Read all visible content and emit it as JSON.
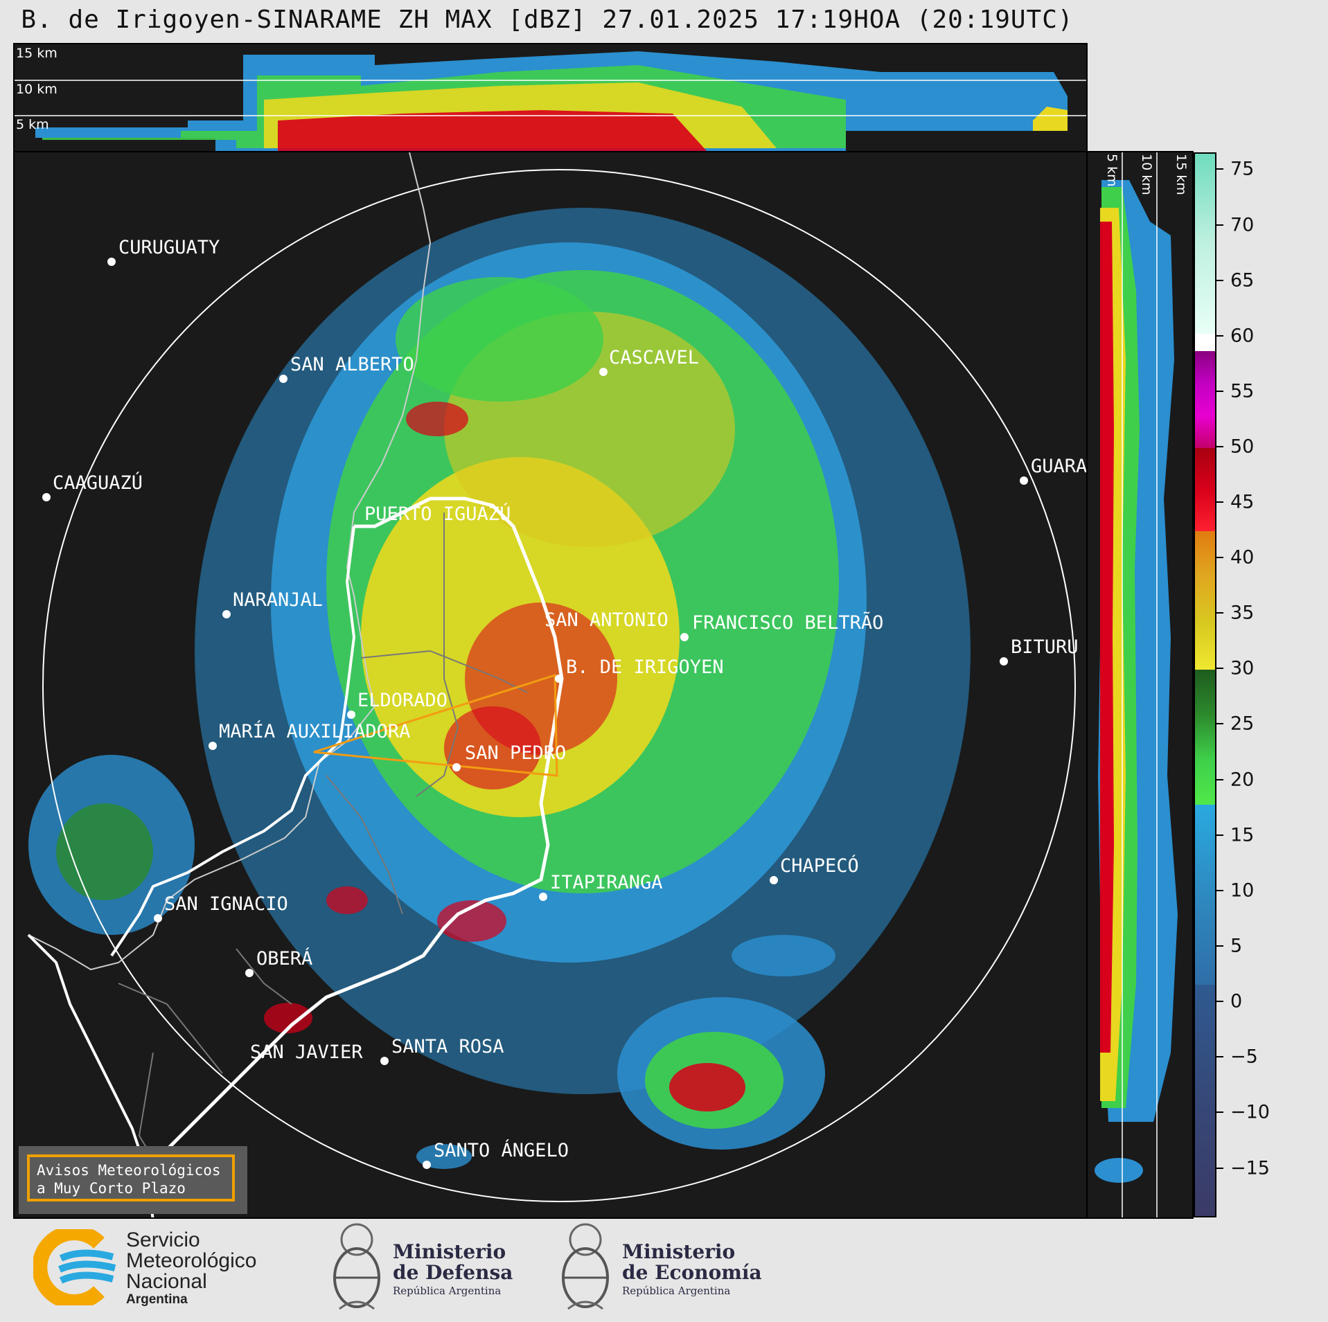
{
  "title": "B. de Irigoyen-SINARAME ZH MAX [dBZ] 27.01.2025 17:19HOA (20:19UTC)",
  "top_panel": {
    "altitudes": [
      "15 km",
      "10 km",
      "5 km"
    ]
  },
  "side_panel": {
    "altitudes": [
      "5 km",
      "10 km",
      "15 km"
    ]
  },
  "colorbar": {
    "unit": "dBZ",
    "ticks": [
      "75",
      "70",
      "65",
      "60",
      "55",
      "50",
      "45",
      "40",
      "35",
      "30",
      "25",
      "20",
      "15",
      "10",
      "5",
      "0",
      "−5",
      "−10",
      "−15"
    ],
    "range": [
      -20,
      77
    ]
  },
  "cities": [
    {
      "name": "CURUGUATY"
    },
    {
      "name": "SAN ALBERTO"
    },
    {
      "name": "CASCAVEL"
    },
    {
      "name": "CAAGUAZÚ"
    },
    {
      "name": "GUARA"
    },
    {
      "name": "PUERTO IGUAZÚ"
    },
    {
      "name": "NARANJAL"
    },
    {
      "name": "SAN ANTONIO"
    },
    {
      "name": "FRANCISCO BELTRÃO"
    },
    {
      "name": "B. DE IRIGOYEN"
    },
    {
      "name": "BITURU"
    },
    {
      "name": "ELDORADO"
    },
    {
      "name": "MARÍA AUXILIADORA"
    },
    {
      "name": "SAN PEDRO"
    },
    {
      "name": "CHAPECÓ"
    },
    {
      "name": "ITAPIRANGA"
    },
    {
      "name": "SAN IGNACIO"
    },
    {
      "name": "OBERÁ"
    },
    {
      "name": "SAN JAVIER"
    },
    {
      "name": "SANTA ROSA"
    },
    {
      "name": "SANTO ÁNGELO"
    }
  ],
  "warning_box": {
    "line1": "Avisos Meteorológicos",
    "line2": "a Muy Corto Plazo"
  },
  "logos": {
    "smn": {
      "line1": "Servicio",
      "line2": "Meteorológico",
      "line3": "Nacional",
      "line4": "Argentina"
    },
    "defensa": {
      "line1": "Ministerio",
      "line2": "de Defensa",
      "line3": "República Argentina"
    },
    "economia": {
      "line1": "Ministerio",
      "line2": "de Economía",
      "line3": "República Argentina"
    }
  },
  "colors": {
    "background": "#1a1a1a",
    "range_ring": "#ffffff",
    "orange_lines": "#f39c12",
    "accent_smn": "#f5a800",
    "accent_smn_blue": "#29a9e0"
  }
}
